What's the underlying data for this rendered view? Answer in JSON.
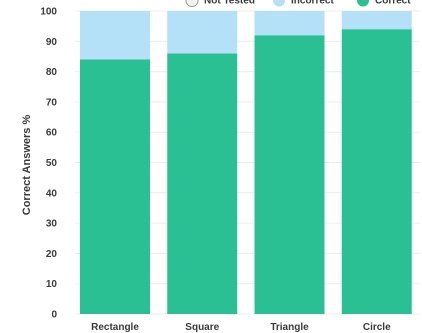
{
  "chart_data": {
    "type": "bar",
    "stacked": true,
    "categories": [
      "Rectangle",
      "Square",
      "Triangle",
      "Circle"
    ],
    "series": [
      {
        "name": "Correct",
        "color": "#2bbf94",
        "values": [
          84,
          86,
          92,
          94
        ]
      },
      {
        "name": "Incorrect",
        "color": "#b5e1f8",
        "values": [
          16,
          14,
          8,
          6
        ]
      },
      {
        "name": "Not Tested",
        "color": "#e6e6e6",
        "values": [
          0,
          0,
          0,
          0
        ]
      }
    ],
    "legend": {
      "placement": "top-right",
      "order": [
        "Not Tested",
        "Incorrect",
        "Correct"
      ]
    },
    "ylabel": "Correct Answers %",
    "xlabel": "",
    "title": "",
    "ylim": [
      0,
      100
    ],
    "yticks": [
      0,
      10,
      20,
      30,
      40,
      50,
      60,
      70,
      80,
      90,
      100
    ],
    "grid": "y"
  }
}
